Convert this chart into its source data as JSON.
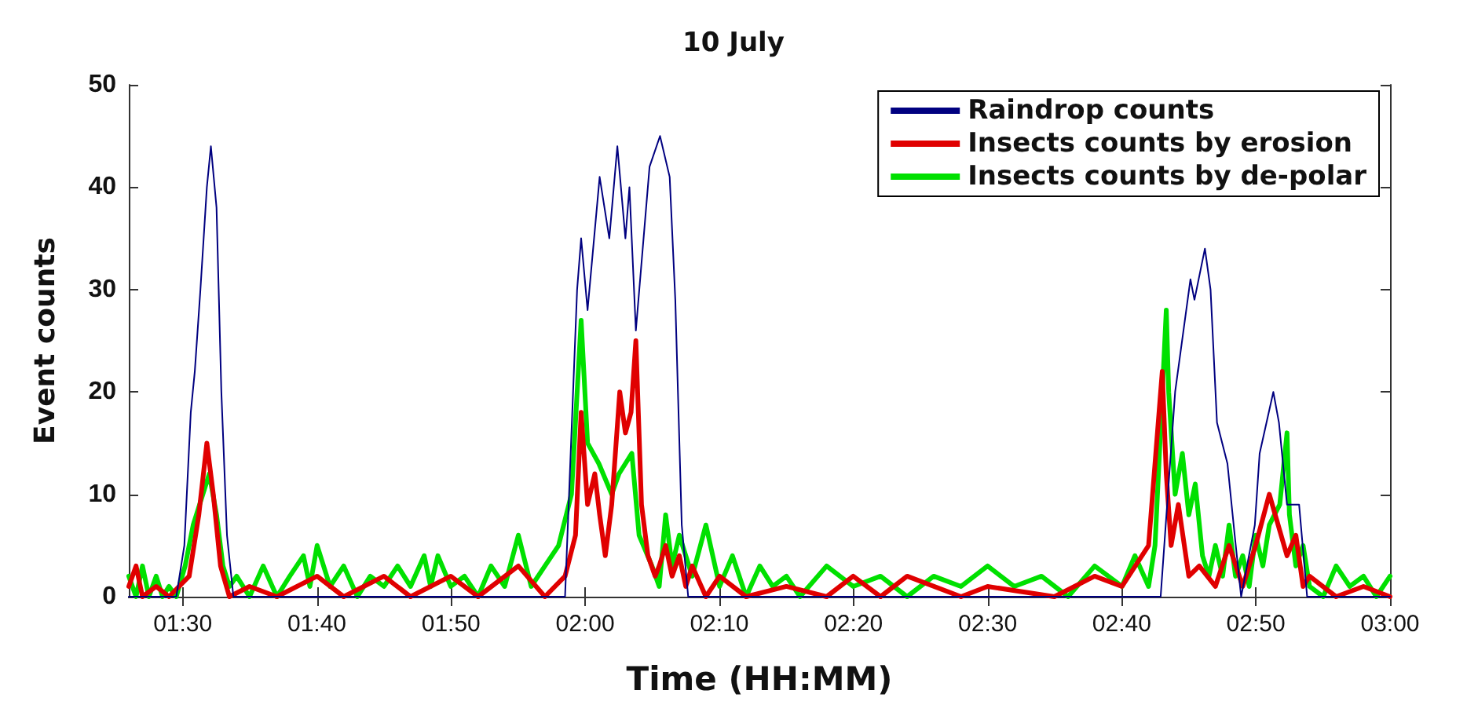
{
  "chart_data": {
    "type": "line",
    "title": "10 July",
    "xlabel": "Time (HH:MM)",
    "ylabel": "Event counts",
    "xlim": [
      1.433,
      3
    ],
    "xticks": [
      {
        "value": 1.5,
        "label": "01:30"
      },
      {
        "value": 1.6667,
        "label": "01:40"
      },
      {
        "value": 1.8333,
        "label": "01:50"
      },
      {
        "value": 2,
        "label": "02:00"
      },
      {
        "value": 2.1667,
        "label": "02:10"
      },
      {
        "value": 2.3333,
        "label": "02:20"
      },
      {
        "value": 2.5,
        "label": "02:30"
      },
      {
        "value": 2.6667,
        "label": "02:40"
      },
      {
        "value": 2.8333,
        "label": "02:50"
      },
      {
        "value": 3,
        "label": "03:00"
      }
    ],
    "ylim": [
      0,
      50
    ],
    "yticks": [
      0,
      10,
      20,
      30,
      40,
      50
    ],
    "grid": false,
    "legend": "top right",
    "marker": "none",
    "line_style": "solid",
    "series": [
      {
        "name": "Raindrop counts",
        "color": "#000080",
        "x": [
          1.433,
          1.492,
          1.502,
          1.51,
          1.515,
          1.522,
          1.53,
          1.535,
          1.542,
          1.548,
          1.555,
          1.563,
          1.975,
          1.98,
          1.99,
          1.995,
          2.003,
          2.018,
          2.03,
          2.04,
          2.05,
          2.055,
          2.063,
          2.08,
          2.093,
          2.105,
          2.112,
          2.12,
          2.128,
          2.715,
          2.733,
          2.752,
          2.757,
          2.77,
          2.777,
          2.785,
          2.798,
          2.807,
          2.815,
          2.832,
          2.838,
          2.855,
          2.862,
          2.872,
          2.887,
          2.897,
          3
        ],
        "values": [
          0,
          0,
          5,
          18,
          22,
          30,
          40,
          44,
          38,
          20,
          6,
          0,
          0,
          10,
          30,
          35,
          28,
          41,
          35,
          44,
          35,
          40,
          26,
          42,
          45,
          41,
          29,
          7,
          0,
          0,
          20,
          31,
          29,
          34,
          30,
          17,
          13,
          6,
          0,
          7,
          14,
          20,
          17,
          9,
          9,
          0,
          0
        ]
      },
      {
        "name": "Insects counts by erosion",
        "color": "#e00000",
        "x": [
          1.433,
          1.442,
          1.45,
          1.467,
          1.483,
          1.508,
          1.52,
          1.53,
          1.538,
          1.547,
          1.558,
          1.583,
          1.617,
          1.667,
          1.7,
          1.75,
          1.783,
          1.833,
          1.867,
          1.917,
          1.95,
          1.975,
          1.988,
          1.995,
          2.003,
          2.012,
          2.018,
          2.025,
          2.033,
          2.043,
          2.05,
          2.057,
          2.063,
          2.07,
          2.078,
          2.087,
          2.092,
          2.1,
          2.108,
          2.117,
          2.125,
          2.133,
          2.15,
          2.167,
          2.2,
          2.25,
          2.3,
          2.333,
          2.367,
          2.4,
          2.467,
          2.5,
          2.583,
          2.633,
          2.667,
          2.7,
          2.717,
          2.722,
          2.728,
          2.737,
          2.75,
          2.763,
          2.783,
          2.8,
          2.817,
          2.833,
          2.85,
          2.872,
          2.883,
          2.892,
          2.9,
          2.933,
          2.967,
          3
        ],
        "values": [
          1,
          3,
          0,
          1,
          0,
          2,
          8,
          15,
          10,
          3,
          0,
          1,
          0,
          2,
          0,
          2,
          0,
          2,
          0,
          3,
          0,
          2,
          6,
          18,
          9,
          12,
          8,
          4,
          9,
          20,
          16,
          18,
          25,
          9,
          4,
          2,
          3,
          5,
          2,
          4,
          1,
          3,
          0,
          2,
          0,
          1,
          0,
          2,
          0,
          2,
          0,
          1,
          0,
          2,
          1,
          5,
          22,
          12,
          5,
          9,
          2,
          3,
          1,
          5,
          1,
          5,
          10,
          4,
          6,
          1,
          2,
          0,
          1,
          0
        ]
      },
      {
        "name": "Insects counts by de-polar",
        "color": "#00e000",
        "x": [
          1.433,
          1.442,
          1.45,
          1.458,
          1.467,
          1.475,
          1.483,
          1.492,
          1.503,
          1.513,
          1.525,
          1.533,
          1.542,
          1.55,
          1.558,
          1.567,
          1.583,
          1.6,
          1.617,
          1.633,
          1.65,
          1.658,
          1.667,
          1.683,
          1.7,
          1.717,
          1.733,
          1.75,
          1.767,
          1.783,
          1.8,
          1.808,
          1.817,
          1.833,
          1.85,
          1.867,
          1.883,
          1.9,
          1.917,
          1.933,
          1.95,
          1.967,
          1.983,
          1.995,
          2.003,
          2.017,
          2.033,
          2.042,
          2.05,
          2.058,
          2.067,
          2.083,
          2.092,
          2.1,
          2.108,
          2.117,
          2.133,
          2.15,
          2.167,
          2.183,
          2.2,
          2.217,
          2.233,
          2.25,
          2.267,
          2.3,
          2.333,
          2.367,
          2.4,
          2.433,
          2.467,
          2.5,
          2.533,
          2.567,
          2.6,
          2.633,
          2.667,
          2.683,
          2.7,
          2.708,
          2.722,
          2.725,
          2.733,
          2.742,
          2.75,
          2.758,
          2.767,
          2.775,
          2.783,
          2.792,
          2.8,
          2.808,
          2.817,
          2.825,
          2.833,
          2.842,
          2.85,
          2.863,
          2.872,
          2.875,
          2.883,
          2.892,
          2.9,
          2.917,
          2.933,
          2.95,
          2.967,
          2.983,
          3
        ],
        "values": [
          2,
          0,
          3,
          0,
          2,
          0,
          1,
          0,
          3,
          7,
          10,
          12,
          8,
          3,
          1,
          2,
          0,
          3,
          0,
          2,
          4,
          1,
          5,
          1,
          3,
          0,
          2,
          1,
          3,
          1,
          4,
          1,
          4,
          1,
          2,
          0,
          3,
          1,
          6,
          1,
          3,
          5,
          10,
          27,
          15,
          13,
          10,
          12,
          13,
          14,
          6,
          3,
          1,
          8,
          3,
          6,
          2,
          7,
          1,
          4,
          0,
          3,
          1,
          2,
          0,
          3,
          1,
          2,
          0,
          2,
          1,
          3,
          1,
          2,
          0,
          3,
          1,
          4,
          1,
          5,
          28,
          20,
          10,
          14,
          8,
          11,
          4,
          2,
          5,
          2,
          7,
          2,
          4,
          1,
          6,
          3,
          7,
          9,
          16,
          8,
          3,
          5,
          1,
          0,
          3,
          1,
          2,
          0,
          2
        ]
      }
    ]
  }
}
